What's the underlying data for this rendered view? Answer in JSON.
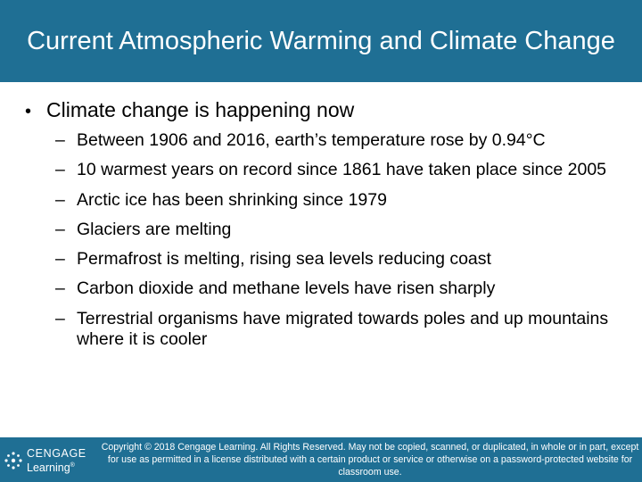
{
  "slide": {
    "title": "Current Atmospheric Warming and Climate Change",
    "main_bullet_marker": "•",
    "main_bullet": "Climate change is happening now",
    "sub_bullet_marker": "–",
    "sub_bullets": [
      "Between 1906 and 2016, earth’s temperature rose by 0.94°C",
      "10 warmest years on record since 1861 have taken place since 2005",
      "Arctic ice has been shrinking since 1979",
      "Glaciers are melting",
      "Permafrost is melting, rising sea levels reducing coast",
      "Carbon dioxide and methane levels have risen sharply",
      "Terrestrial organisms have migrated towards poles and up mountains where it is cooler"
    ]
  },
  "footer": {
    "logo_line1": "CENGAGE",
    "logo_line2": "Learning",
    "logo_mark": "®",
    "copyright": "Copyright © 2018 Cengage Learning. All Rights Reserved. May not be copied, scanned, or duplicated, in whole or in part, except for use as permitted in a license distributed with a certain product or service or otherwise on a password-protected website for classroom use."
  },
  "colors": {
    "bar": "#1f6f94",
    "text": "#000000",
    "bar_text": "#ffffff"
  },
  "icons": {
    "logo": "cengage-swirl-icon"
  }
}
